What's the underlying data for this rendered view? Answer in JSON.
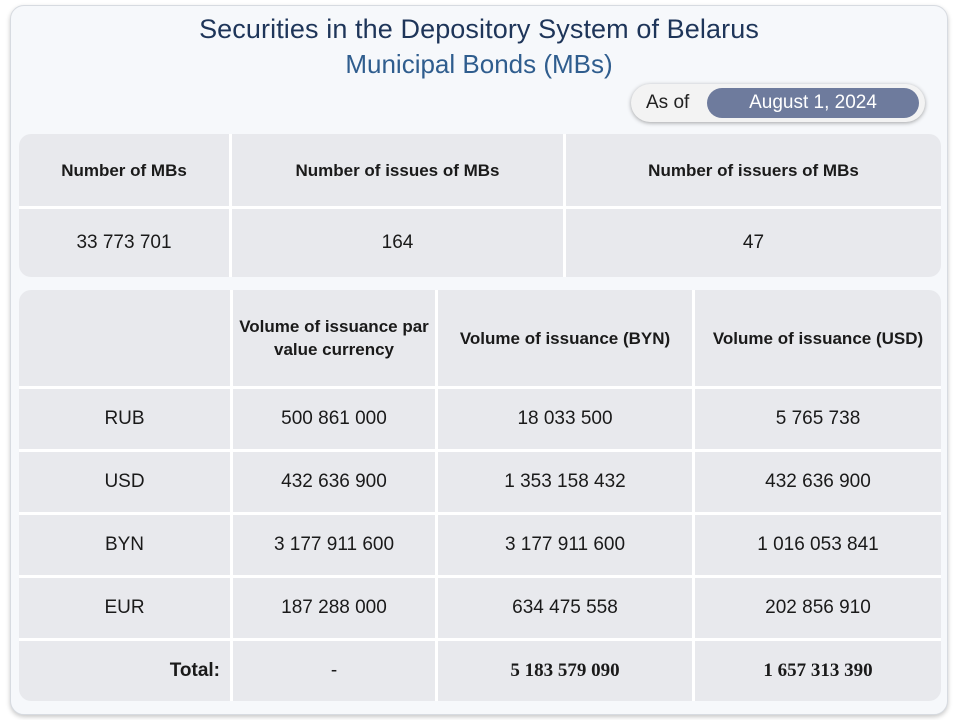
{
  "header": {
    "title": "Securities in the Depository System of Belarus",
    "subtitle": "Municipal Bonds (MBs)"
  },
  "as_of": {
    "label": "As of",
    "date": "August 1, 2024"
  },
  "summary": {
    "headers": [
      "Number of MBs",
      "Number of issues of MBs",
      "Number of issuers of MBs"
    ],
    "values": [
      "33 773 701",
      "164",
      "47"
    ]
  },
  "volume": {
    "headers": [
      "",
      "Volume of issuance par value currency",
      "Volume of issuance (BYN)",
      "Volume of issuance (USD)"
    ],
    "rows": [
      {
        "currency": "RUB",
        "par": "500 861 000",
        "byn": "18 033 500",
        "usd": "5 765 738"
      },
      {
        "currency": "USD",
        "par": "432 636 900",
        "byn": "1 353 158 432",
        "usd": "432 636 900"
      },
      {
        "currency": "BYN",
        "par": "3 177 911 600",
        "byn": "3 177 911 600",
        "usd": "1 016 053 841"
      },
      {
        "currency": "EUR",
        "par": "187 288 000",
        "byn": "634 475 558",
        "usd": "202 856 910"
      }
    ],
    "total": {
      "label": "Total:",
      "par": "-",
      "byn": "5 183 579 090",
      "usd": "1 657 313 390"
    }
  }
}
